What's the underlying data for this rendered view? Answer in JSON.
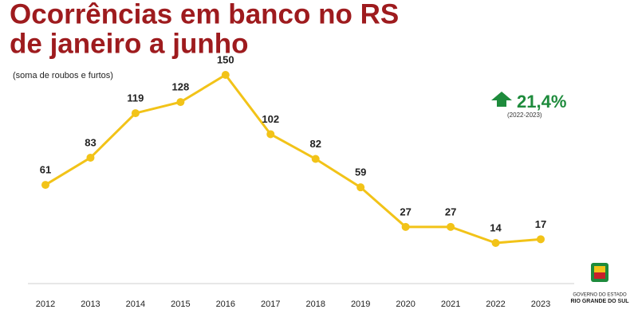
{
  "chart_data": {
    "type": "line",
    "title": [
      "Ocorrências em banco no RS",
      "de janeiro a junho"
    ],
    "subtitle": "(soma de roubos e furtos)",
    "categories": [
      "2012",
      "2013",
      "2014",
      "2015",
      "2016",
      "2017",
      "2018",
      "2019",
      "2020",
      "2021",
      "2022",
      "2023"
    ],
    "values": [
      61,
      83,
      119,
      128,
      150,
      102,
      82,
      59,
      27,
      27,
      14,
      17
    ],
    "color": "#f2c318",
    "annotation": {
      "value": "21,4%",
      "period": "(2022-2023)",
      "color": "#1e8b3c"
    },
    "logo": [
      "GOVERNO DO ESTADO",
      "RIO GRANDE DO SUL"
    ]
  }
}
